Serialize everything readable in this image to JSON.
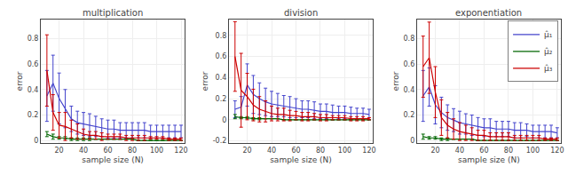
{
  "chart_data": [
    {
      "type": "line",
      "title": "multiplication",
      "xlabel": "sample size (N)",
      "ylabel": "error",
      "x": [
        10,
        15,
        20,
        25,
        30,
        35,
        40,
        45,
        50,
        55,
        60,
        65,
        70,
        75,
        80,
        85,
        90,
        95,
        100,
        105,
        110,
        115,
        120
      ],
      "xlim": [
        5,
        123
      ],
      "xticks": [
        20,
        40,
        60,
        80,
        100,
        120
      ],
      "ylim": [
        -0.02,
        0.95
      ],
      "yticks": [
        0.0,
        0.2,
        0.4,
        0.6,
        0.8
      ],
      "grid": true,
      "series": [
        {
          "name": "μ̂₁",
          "color": "#4444cc",
          "values": [
            0.35,
            0.45,
            0.33,
            0.25,
            0.17,
            0.14,
            0.13,
            0.12,
            0.11,
            0.1,
            0.09,
            0.09,
            0.08,
            0.08,
            0.08,
            0.08,
            0.08,
            0.07,
            0.07,
            0.07,
            0.07,
            0.07,
            0.07
          ],
          "errors": [
            0.2,
            0.22,
            0.2,
            0.15,
            0.1,
            0.09,
            0.09,
            0.09,
            0.08,
            0.07,
            0.07,
            0.07,
            0.06,
            0.06,
            0.06,
            0.06,
            0.06,
            0.05,
            0.05,
            0.05,
            0.05,
            0.05,
            0.05
          ]
        },
        {
          "name": "μ̂₂",
          "color": "#006600",
          "values": [
            0.05,
            0.03,
            0.02,
            0.02,
            0.01,
            0.01,
            0.01,
            0.01,
            0.01,
            0.01,
            0.01,
            0.01,
            0.01,
            0.01,
            0.01,
            0.0,
            0.0,
            0.0,
            0.0,
            0.0,
            0.0,
            0.0,
            0.0
          ],
          "errors": [
            0.02,
            0.02,
            0.01,
            0.01,
            0.01,
            0.01,
            0.01,
            0.01,
            0.0,
            0.0,
            0.0,
            0.0,
            0.0,
            0.0,
            0.0,
            0.0,
            0.0,
            0.0,
            0.0,
            0.0,
            0.0,
            0.0,
            0.0
          ]
        },
        {
          "name": "μ̂₃",
          "color": "#cc0000",
          "values": [
            0.55,
            0.22,
            0.12,
            0.11,
            0.09,
            0.07,
            0.05,
            0.04,
            0.04,
            0.03,
            0.03,
            0.03,
            0.03,
            0.02,
            0.02,
            0.02,
            0.02,
            0.02,
            0.02,
            0.02,
            0.01,
            0.01,
            0.01
          ],
          "errors": [
            0.28,
            0.14,
            0.1,
            0.11,
            0.07,
            0.06,
            0.04,
            0.03,
            0.03,
            0.03,
            0.02,
            0.02,
            0.02,
            0.02,
            0.02,
            0.02,
            0.02,
            0.01,
            0.01,
            0.01,
            0.01,
            0.01,
            0.01
          ]
        }
      ]
    },
    {
      "type": "line",
      "title": "division",
      "xlabel": "sample size (N)",
      "ylabel": "error",
      "x": [
        10,
        15,
        20,
        25,
        30,
        35,
        40,
        45,
        50,
        55,
        60,
        65,
        70,
        75,
        80,
        85,
        90,
        95,
        100,
        105,
        110,
        115,
        120
      ],
      "xlim": [
        5,
        123
      ],
      "xticks": [
        20,
        40,
        60,
        80,
        100,
        120
      ],
      "ylim": [
        -0.22,
        0.95
      ],
      "yticks": [
        -0.2,
        0.0,
        0.2,
        0.4,
        0.6,
        0.8
      ],
      "grid": true,
      "series": [
        {
          "name": "μ̂₁",
          "color": "#4444cc",
          "values": [
            0.1,
            0.12,
            0.33,
            0.24,
            0.2,
            0.17,
            0.15,
            0.14,
            0.13,
            0.12,
            0.11,
            0.1,
            0.1,
            0.09,
            0.08,
            0.08,
            0.07,
            0.07,
            0.07,
            0.06,
            0.06,
            0.06,
            0.05
          ],
          "errors": [
            0.08,
            0.1,
            0.2,
            0.18,
            0.15,
            0.13,
            0.12,
            0.11,
            0.1,
            0.1,
            0.09,
            0.08,
            0.08,
            0.08,
            0.07,
            0.07,
            0.07,
            0.06,
            0.06,
            0.06,
            0.05,
            0.05,
            0.05
          ]
        },
        {
          "name": "μ̂₂",
          "color": "#006600",
          "values": [
            0.03,
            0.02,
            0.02,
            0.01,
            0.01,
            0.01,
            0.01,
            0.01,
            0.0,
            0.0,
            0.0,
            0.0,
            0.0,
            0.0,
            0.0,
            0.0,
            0.0,
            0.0,
            0.0,
            0.0,
            0.0,
            0.0,
            0.0
          ],
          "errors": [
            0.02,
            0.01,
            0.01,
            0.01,
            0.01,
            0.0,
            0.0,
            0.0,
            0.0,
            0.0,
            0.0,
            0.0,
            0.0,
            0.0,
            0.0,
            0.0,
            0.0,
            0.0,
            0.0,
            0.0,
            0.0,
            0.0,
            0.0
          ]
        },
        {
          "name": "μ̂₃",
          "color": "#cc0000",
          "values": [
            0.6,
            0.28,
            0.22,
            0.14,
            0.1,
            0.08,
            0.06,
            0.05,
            0.05,
            0.04,
            0.04,
            0.03,
            0.03,
            0.03,
            0.02,
            0.02,
            0.02,
            0.02,
            0.02,
            0.01,
            0.01,
            0.01,
            0.01
          ],
          "errors": [
            0.33,
            0.35,
            0.22,
            0.15,
            0.12,
            0.1,
            0.07,
            0.06,
            0.06,
            0.05,
            0.04,
            0.04,
            0.04,
            0.03,
            0.03,
            0.03,
            0.02,
            0.02,
            0.02,
            0.02,
            0.02,
            0.02,
            0.01
          ]
        }
      ]
    },
    {
      "type": "line",
      "title": "exponentiation",
      "xlabel": "sample size (N)",
      "ylabel": "error",
      "x": [
        10,
        15,
        20,
        25,
        30,
        35,
        40,
        45,
        50,
        55,
        60,
        65,
        70,
        75,
        80,
        85,
        90,
        95,
        100,
        105,
        110,
        115,
        120
      ],
      "xlim": [
        5,
        123
      ],
      "xticks": [
        20,
        40,
        60,
        80,
        100,
        120
      ],
      "ylim": [
        -0.02,
        0.95
      ],
      "yticks": [
        0.0,
        0.2,
        0.4,
        0.6,
        0.8
      ],
      "grid": true,
      "legend": "upper right",
      "series": [
        {
          "name": "μ̂₁",
          "color": "#4444cc",
          "values": [
            0.35,
            0.42,
            0.28,
            0.22,
            0.18,
            0.16,
            0.14,
            0.13,
            0.12,
            0.11,
            0.1,
            0.1,
            0.09,
            0.09,
            0.09,
            0.08,
            0.08,
            0.08,
            0.07,
            0.07,
            0.07,
            0.07,
            0.06
          ],
          "errors": [
            0.2,
            0.15,
            0.15,
            0.12,
            0.1,
            0.09,
            0.09,
            0.08,
            0.08,
            0.07,
            0.07,
            0.07,
            0.06,
            0.06,
            0.06,
            0.06,
            0.06,
            0.05,
            0.05,
            0.05,
            0.05,
            0.05,
            0.04
          ]
        },
        {
          "name": "μ̂₂",
          "color": "#006600",
          "values": [
            0.03,
            0.02,
            0.02,
            0.01,
            0.01,
            0.01,
            0.01,
            0.01,
            0.01,
            0.0,
            0.0,
            0.0,
            0.0,
            0.0,
            0.0,
            0.0,
            0.0,
            0.0,
            0.0,
            0.0,
            0.0,
            0.0,
            0.0
          ],
          "errors": [
            0.02,
            0.01,
            0.01,
            0.01,
            0.01,
            0.0,
            0.0,
            0.0,
            0.0,
            0.0,
            0.0,
            0.0,
            0.0,
            0.0,
            0.0,
            0.0,
            0.0,
            0.0,
            0.0,
            0.0,
            0.0,
            0.0,
            0.0
          ]
        },
        {
          "name": "μ̂₃",
          "color": "#cc0000",
          "values": [
            0.58,
            0.65,
            0.38,
            0.18,
            0.12,
            0.09,
            0.07,
            0.06,
            0.05,
            0.04,
            0.04,
            0.03,
            0.03,
            0.03,
            0.03,
            0.02,
            0.02,
            0.02,
            0.02,
            0.02,
            0.01,
            0.01,
            0.01
          ],
          "errors": [
            0.24,
            0.28,
            0.2,
            0.14,
            0.1,
            0.08,
            0.07,
            0.06,
            0.05,
            0.04,
            0.04,
            0.03,
            0.03,
            0.03,
            0.03,
            0.02,
            0.02,
            0.02,
            0.02,
            0.02,
            0.01,
            0.01,
            0.01
          ]
        }
      ]
    }
  ]
}
